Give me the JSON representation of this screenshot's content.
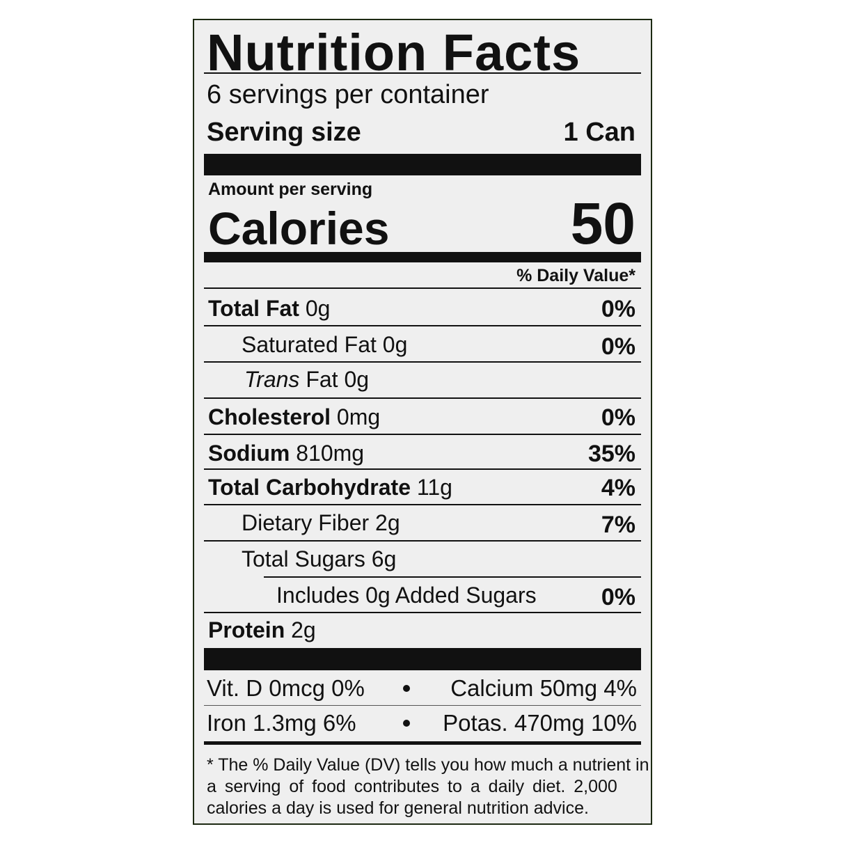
{
  "header": {
    "title": "Nutrition Facts",
    "servings": "6 servings per container",
    "serving_size_label": "Serving size",
    "serving_size_value": "1 Can"
  },
  "calories": {
    "amount_label": "Amount per serving",
    "label": "Calories",
    "value": "50"
  },
  "dv_header": "% Daily Value*",
  "nutrients": [
    {
      "name": "Total Fat",
      "amount": "0g",
      "dv": "0%"
    },
    {
      "name": "Saturated Fat",
      "amount": "0g",
      "dv": "0%"
    },
    {
      "name_italic": "Trans",
      "name": "Fat",
      "amount": "0g"
    },
    {
      "name": "Cholesterol",
      "amount": "0mg",
      "dv": "0%"
    },
    {
      "name": "Sodium",
      "amount": "810mg",
      "dv": "35%"
    },
    {
      "name": "Total Carbohydrate",
      "amount": "11g",
      "dv": "4%"
    },
    {
      "name": "Dietary Fiber",
      "amount": "2g",
      "dv": "7%"
    },
    {
      "name": "Total Sugars",
      "amount": "6g"
    },
    {
      "name": "Includes 0g Added Sugars",
      "dv": "0%"
    },
    {
      "name": "Protein",
      "amount": "2g"
    }
  ],
  "vitamins": [
    [
      "Vit. D 0mcg 0%",
      "Calcium 50mg 4%"
    ],
    [
      "Iron 1.3mg 6%",
      "Potas. 470mg 10%"
    ]
  ],
  "footnote": [
    "* The % Daily Value (DV) tells you how much a nutrient in",
    "a serving of food contributes to a daily diet. 2,000",
    "calories a day is used for general nutrition advice."
  ]
}
